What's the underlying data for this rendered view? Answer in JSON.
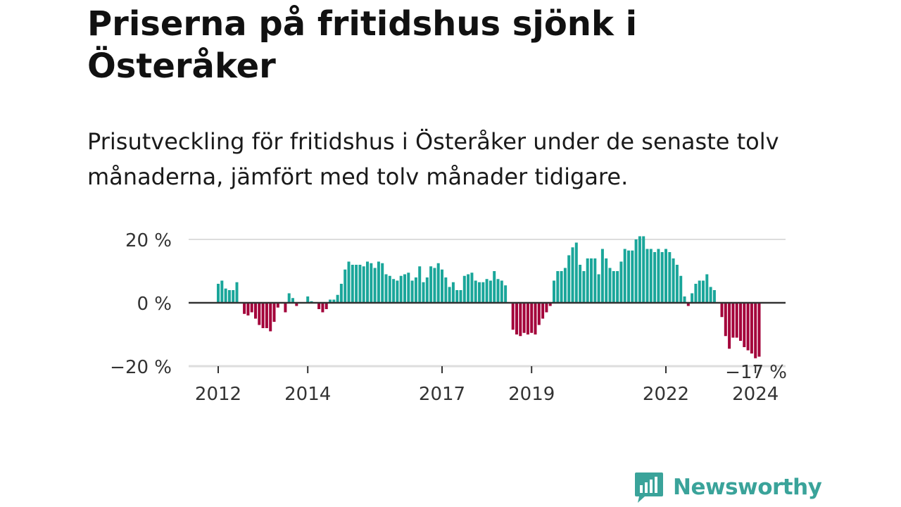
{
  "title": "Priserna på fritidshus sjönk i Österåker",
  "subtitle": "Prisutveckling för fritidshus i Österåker under de senaste tolv månaderna, jämfört med tolv månader tidigare.",
  "logo": {
    "text": "Newsworthy",
    "color": "#3aa39a"
  },
  "chart_data": {
    "type": "bar",
    "title": "Priserna på fritidshus sjönk i Österåker",
    "subtitle": "Prisutveckling för fritidshus i Österåker under de senaste tolv månaderna, jämfört med tolv månader tidigare.",
    "xlabel": "",
    "ylabel": "",
    "unit": "%",
    "x_start": "2012-01",
    "frequency": "monthly",
    "ylim": [
      -20,
      20
    ],
    "yticks": [
      {
        "value": 20,
        "label": "20 %"
      },
      {
        "value": 0,
        "label": "0 %"
      },
      {
        "value": -20,
        "label": "−20 %"
      }
    ],
    "xticks": [
      {
        "month": "2012-01",
        "label": "2012"
      },
      {
        "month": "2014-01",
        "label": "2014"
      },
      {
        "month": "2017-01",
        "label": "2017"
      },
      {
        "month": "2019-01",
        "label": "2019"
      },
      {
        "month": "2022-01",
        "label": "2022"
      },
      {
        "month": "2024-01",
        "label": "2024"
      }
    ],
    "grid": true,
    "colors": {
      "positive": "#1aa69a",
      "negative": "#a3003a",
      "zero_line": "#333333",
      "grid": "#dddddd"
    },
    "annotation": {
      "month": "2024-03",
      "value": -17,
      "label": "−17 %"
    },
    "values": [
      6,
      7,
      4.5,
      4,
      4,
      6.5,
      null,
      -3.5,
      -4,
      -3,
      -5,
      -7,
      -8,
      -8,
      -9,
      -6,
      -1.5,
      null,
      -3,
      3,
      1.5,
      -1,
      null,
      null,
      2,
      0.5,
      null,
      -2,
      -3,
      -2,
      1,
      1,
      2.5,
      6,
      10.5,
      13,
      12,
      12,
      12,
      11.5,
      13,
      12.5,
      11,
      13,
      12.5,
      9,
      8.5,
      7.5,
      7,
      8.5,
      9,
      9.5,
      7,
      8,
      11.5,
      6.5,
      8,
      11.5,
      11,
      12.5,
      10.5,
      8,
      5,
      6.5,
      4,
      4,
      8.5,
      9,
      9.5,
      7,
      6.5,
      6.5,
      7.5,
      7,
      10,
      7.5,
      7,
      5.5,
      null,
      -8.5,
      -10,
      -10.5,
      -9.5,
      -10,
      -9.5,
      -10,
      -7,
      -5,
      -3,
      -1,
      7,
      10,
      10,
      11,
      15,
      17.5,
      19,
      12,
      10,
      14,
      14,
      14,
      9,
      17,
      14,
      11,
      10,
      10,
      13,
      17,
      16.5,
      16.5,
      20,
      21,
      21,
      17,
      17,
      16,
      17,
      16,
      17,
      16,
      14,
      12,
      8.5,
      2,
      -1,
      3,
      6,
      7,
      7,
      9,
      5,
      4,
      null,
      -4.5,
      -10.5,
      -14.5,
      -11,
      -11,
      -12,
      -14,
      -15,
      -16,
      -17.5,
      -17
    ]
  }
}
